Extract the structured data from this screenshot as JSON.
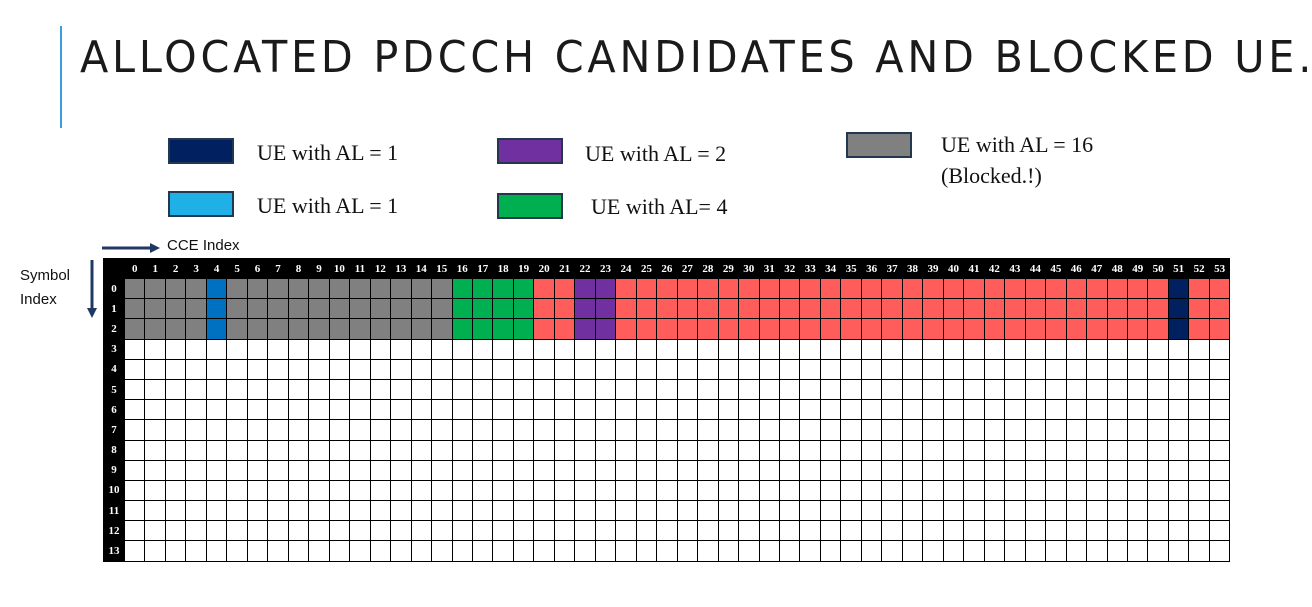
{
  "title": "ALLOCATED PDCCH CANDIDATES AND BLOCKED UE..!",
  "colors": {
    "ue_al1_dark": "#002060",
    "ue_al1_light": "#1fb0e6",
    "ue_al2": "#7030a0",
    "ue_al4": "#00b050",
    "ue_al16_blocked": "#808080",
    "unallocated": "#ff5c5c",
    "empty": "#ffffff",
    "accent": "#3aa0d8"
  },
  "legend": [
    {
      "label": "UE with AL = 1",
      "color": "#002060"
    },
    {
      "label": "UE with AL = 2",
      "color": "#7030a0"
    },
    {
      "label": "UE with AL = 16",
      "label2": "(Blocked.!)",
      "color": "#808080"
    },
    {
      "label": "UE with AL = 1",
      "color": "#1fb0e6"
    },
    {
      "label": "UE with AL= 4",
      "color": "#00b050"
    }
  ],
  "axes": {
    "cce_label": "CCE Index",
    "symbol_label_line1": "Symbol",
    "symbol_label_line2": "Index"
  },
  "grid": {
    "cce_indices": [
      "0",
      "1",
      "2",
      "3",
      "4",
      "5",
      "6",
      "7",
      "8",
      "9",
      "10",
      "11",
      "12",
      "13",
      "14",
      "15",
      "16",
      "17",
      "18",
      "19",
      "20",
      "21",
      "22",
      "23",
      "24",
      "25",
      "26",
      "27",
      "28",
      "29",
      "30",
      "31",
      "32",
      "33",
      "34",
      "35",
      "36",
      "37",
      "38",
      "39",
      "40",
      "41",
      "42",
      "43",
      "44",
      "45",
      "46",
      "47",
      "48",
      "49",
      "50",
      "51",
      "52",
      "53"
    ],
    "symbol_indices": [
      "0",
      "1",
      "2",
      "3",
      "4",
      "5",
      "6",
      "7",
      "8",
      "9",
      "10",
      "11",
      "12",
      "13"
    ],
    "allocations": [
      {
        "cce_start": 0,
        "cce_end": 3,
        "symbol_start": 0,
        "symbol_end": 2,
        "color": "#808080"
      },
      {
        "cce_start": 4,
        "cce_end": 4,
        "symbol_start": 0,
        "symbol_end": 2,
        "color": "#0070c0"
      },
      {
        "cce_start": 5,
        "cce_end": 15,
        "symbol_start": 0,
        "symbol_end": 2,
        "color": "#808080"
      },
      {
        "cce_start": 16,
        "cce_end": 19,
        "symbol_start": 0,
        "symbol_end": 2,
        "color": "#00b050"
      },
      {
        "cce_start": 20,
        "cce_end": 21,
        "symbol_start": 0,
        "symbol_end": 2,
        "color": "#ff5c5c"
      },
      {
        "cce_start": 22,
        "cce_end": 23,
        "symbol_start": 0,
        "symbol_end": 2,
        "color": "#7030a0"
      },
      {
        "cce_start": 24,
        "cce_end": 50,
        "symbol_start": 0,
        "symbol_end": 2,
        "color": "#ff5c5c"
      },
      {
        "cce_start": 51,
        "cce_end": 51,
        "symbol_start": 0,
        "symbol_end": 2,
        "color": "#002060"
      },
      {
        "cce_start": 52,
        "cce_end": 53,
        "symbol_start": 0,
        "symbol_end": 2,
        "color": "#ff5c5c"
      }
    ]
  }
}
